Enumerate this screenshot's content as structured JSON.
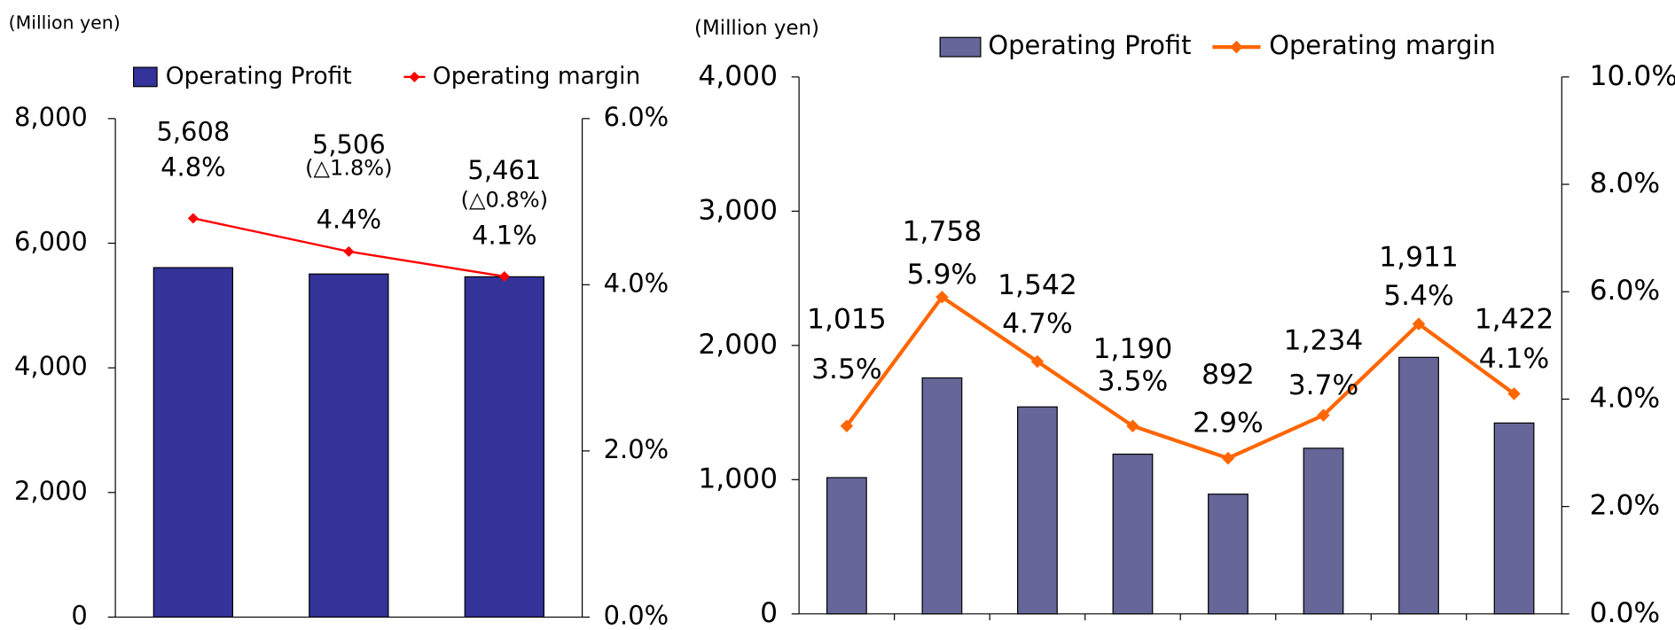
{
  "chart_data": [
    {
      "type": "bar-line",
      "subtitle": "(Million yen)",
      "categories": [
        null,
        null,
        null
      ],
      "series": [
        {
          "name": "Operating Profit",
          "color": "#333399",
          "values": [
            5608,
            5506,
            5461
          ],
          "value_labels": [
            "5,608",
            "5,506",
            "5,461"
          ]
        },
        {
          "name": "Operating margin",
          "color": "#ff0000",
          "axis": "y2",
          "values": [
            4.8,
            4.4,
            4.1
          ],
          "value_labels": [
            "4.8%",
            "4.4%",
            "4.1%"
          ]
        }
      ],
      "annotations": [
        "(△1.8%)",
        "(△0.8%)"
      ],
      "ylim": [
        0,
        8000
      ],
      "yticks": [
        0,
        {
          "value": 2000,
          "label": "2,000"
        },
        {
          "value": 4000,
          "label": "4,000"
        },
        {
          "value": 6000,
          "label": "6,000"
        },
        {
          "value": 8000,
          "label": "8,000"
        }
      ],
      "y2lim": [
        0,
        6
      ],
      "y2ticks": [
        {
          "value": 0,
          "label": "0.0%"
        },
        {
          "value": 2,
          "label": "2.0%"
        },
        {
          "value": 4,
          "label": "4.0%"
        },
        {
          "value": 6,
          "label": "6.0%"
        }
      ],
      "grid": false,
      "legend": "top"
    },
    {
      "type": "bar-line",
      "subtitle": "(Million yen)",
      "categories": [
        null,
        null,
        null,
        null,
        null,
        null,
        null,
        null
      ],
      "series": [
        {
          "name": "Operating Profit",
          "color": "#666699",
          "values": [
            1015,
            1758,
            1542,
            1190,
            892,
            1234,
            1911,
            1422
          ],
          "value_labels": [
            "1,015",
            "1,758",
            "1,542",
            "1,190",
            "892",
            "1,234",
            "1,911",
            "1,422"
          ]
        },
        {
          "name": "Operating margin",
          "color": "#ff6600",
          "axis": "y2",
          "values": [
            3.5,
            5.9,
            4.7,
            3.5,
            2.9,
            3.7,
            5.4,
            4.1
          ],
          "value_labels": [
            "3.5%",
            "5.9%",
            "4.7%",
            "3.5%",
            "2.9%",
            "3.7%",
            "5.4%",
            "4.1%"
          ]
        }
      ],
      "ylim": [
        0,
        4000
      ],
      "yticks": [
        0,
        {
          "value": 1000,
          "label": "1,000"
        },
        {
          "value": 2000,
          "label": "2,000"
        },
        {
          "value": 3000,
          "label": "3,000"
        },
        {
          "value": 4000,
          "label": "4,000"
        }
      ],
      "y2lim": [
        0,
        10
      ],
      "y2ticks": [
        {
          "value": 0,
          "label": "0.0%"
        },
        {
          "value": 2,
          "label": "2.0%"
        },
        {
          "value": 4,
          "label": "4.0%"
        },
        {
          "value": 6,
          "label": "6.0%"
        },
        {
          "value": 8,
          "label": "8.0%"
        },
        {
          "value": 10,
          "label": "10.0%"
        }
      ],
      "grid": false,
      "legend": "top"
    }
  ]
}
